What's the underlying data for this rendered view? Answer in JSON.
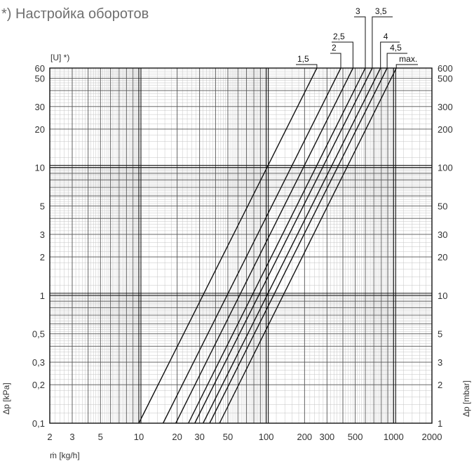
{
  "chart_data": {
    "type": "line",
    "title": "*) Настройка оборотов",
    "left_axis_header": "[U] *)",
    "xlabel": "ṁ [kg/h]",
    "ylabel_left": "Δp [kPa]",
    "ylabel_right": "Δp [mbar]",
    "x_scale": "log",
    "y_scale": "log",
    "xlim": [
      2,
      2000
    ],
    "ylim": [
      0.1,
      60
    ],
    "grid": true,
    "x_ticks": [
      {
        "value": 2,
        "label": "2"
      },
      {
        "value": 3,
        "label": "3"
      },
      {
        "value": 5,
        "label": "5"
      },
      {
        "value": 10,
        "label": "10"
      },
      {
        "value": 20,
        "label": "20"
      },
      {
        "value": 30,
        "label": "30"
      },
      {
        "value": 50,
        "label": "50"
      },
      {
        "value": 100,
        "label": "100"
      },
      {
        "value": 200,
        "label": "200"
      },
      {
        "value": 300,
        "label": "300"
      },
      {
        "value": 500,
        "label": "500"
      },
      {
        "value": 1000,
        "label": "1000"
      },
      {
        "value": 2000,
        "label": "2000"
      }
    ],
    "y_ticks_left": [
      {
        "value": 0.1,
        "label": "0,1"
      },
      {
        "value": 0.2,
        "label": "0,2"
      },
      {
        "value": 0.3,
        "label": "0,3"
      },
      {
        "value": 0.5,
        "label": "0,5"
      },
      {
        "value": 1,
        "label": "1"
      },
      {
        "value": 2,
        "label": "2"
      },
      {
        "value": 3,
        "label": "3"
      },
      {
        "value": 5,
        "label": "5"
      },
      {
        "value": 10,
        "label": "10"
      },
      {
        "value": 20,
        "label": "20"
      },
      {
        "value": 30,
        "label": "30"
      },
      {
        "value": 50,
        "label": "50"
      },
      {
        "value": 60,
        "label": "60"
      }
    ],
    "y_ticks_right": [
      {
        "value": 0.1,
        "label": "1"
      },
      {
        "value": 0.2,
        "label": "2"
      },
      {
        "value": 0.3,
        "label": "3"
      },
      {
        "value": 0.5,
        "label": "5"
      },
      {
        "value": 1,
        "label": "10"
      },
      {
        "value": 2,
        "label": "20"
      },
      {
        "value": 3,
        "label": "30"
      },
      {
        "value": 5,
        "label": "50"
      },
      {
        "value": 10,
        "label": "100"
      },
      {
        "value": 20,
        "label": "200"
      },
      {
        "value": 30,
        "label": "300"
      },
      {
        "value": 50,
        "label": "500"
      },
      {
        "value": 60,
        "label": "600"
      }
    ],
    "series": [
      {
        "name": "1,5",
        "x": [
          10,
          250
        ],
        "y": [
          0.1,
          60
        ]
      },
      {
        "name": "2",
        "x": [
          15.5,
          385
        ],
        "y": [
          0.1,
          60
        ]
      },
      {
        "name": "2,5",
        "x": [
          19.5,
          480
        ],
        "y": [
          0.1,
          60
        ]
      },
      {
        "name": "3",
        "x": [
          24.5,
          600
        ],
        "y": [
          0.1,
          60
        ]
      },
      {
        "name": "3,5",
        "x": [
          27.5,
          680
        ],
        "y": [
          0.1,
          60
        ]
      },
      {
        "name": "4",
        "x": [
          32,
          790
        ],
        "y": [
          0.1,
          60
        ]
      },
      {
        "name": "4,5",
        "x": [
          36,
          890
        ],
        "y": [
          0.1,
          60
        ]
      },
      {
        "name": "max.",
        "x": [
          43,
          1050
        ],
        "y": [
          0.1,
          60
        ]
      }
    ]
  }
}
